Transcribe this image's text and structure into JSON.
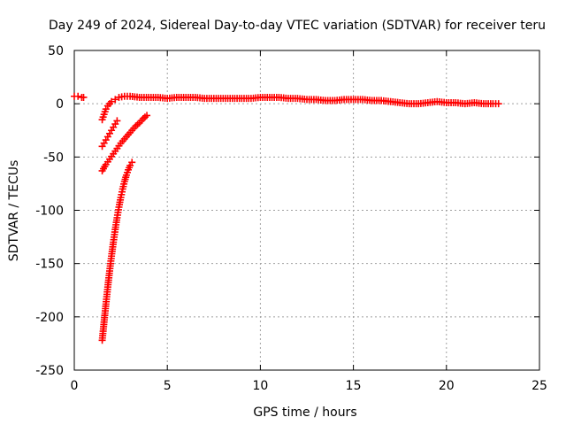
{
  "chart_data": {
    "type": "scatter",
    "title": "Day 249 of 2024, Sidereal Day-to-day VTEC variation (SDTVAR) for receiver teru",
    "xlabel": "GPS time / hours",
    "ylabel": "SDTVAR / TECUs",
    "xlim": [
      0,
      25
    ],
    "ylim": [
      -250,
      50
    ],
    "x_ticks": [
      0,
      5,
      10,
      15,
      20,
      25
    ],
    "y_ticks": [
      50,
      0,
      -50,
      -100,
      -150,
      -200,
      -250
    ],
    "grid": true,
    "marker": "+",
    "color": "#ff0000",
    "series": [
      {
        "x": [
          0.0,
          0.2,
          0.4,
          0.5
        ],
        "y": [
          7,
          7,
          6,
          6
        ]
      },
      {
        "x": [
          1.5,
          1.6,
          1.7,
          1.8,
          1.9,
          2.0,
          2.2,
          2.4,
          2.7,
          3.0,
          3.5,
          4.0,
          4.5,
          5.0,
          5.5,
          6.0,
          6.5,
          7.0,
          7.5,
          8.0,
          8.5,
          9.0,
          9.5,
          10.0,
          10.5,
          11.0,
          11.5,
          12.0,
          12.5,
          13.0,
          13.5,
          14.0,
          14.5,
          15.0,
          15.5,
          16.0,
          16.5,
          17.0,
          17.5,
          18.0,
          18.5,
          19.0,
          19.5,
          20.0,
          20.5,
          21.0,
          21.5,
          22.0,
          22.5,
          22.8
        ],
        "y": [
          -15,
          -10,
          -5,
          -2,
          0,
          2,
          4,
          6,
          7,
          7,
          6,
          6,
          6,
          5,
          6,
          6,
          6,
          5,
          5,
          5,
          5,
          5,
          5,
          6,
          6,
          6,
          5,
          5,
          4,
          4,
          3,
          3,
          4,
          4,
          4,
          3,
          3,
          2,
          1,
          0,
          0,
          1,
          2,
          1,
          1,
          0,
          1,
          0,
          0,
          0
        ]
      },
      {
        "x": [
          1.5,
          1.6,
          1.7,
          1.8,
          1.9,
          2.0,
          2.1,
          2.2,
          2.3
        ],
        "y": [
          -40,
          -37,
          -34,
          -31,
          -28,
          -25,
          -22,
          -19,
          -16
        ]
      },
      {
        "x": [
          1.5,
          1.7,
          1.9,
          2.1,
          2.3,
          2.5,
          2.7,
          2.9,
          3.1,
          3.3,
          3.5,
          3.7,
          3.9
        ],
        "y": [
          -63,
          -57,
          -52,
          -47,
          -42,
          -37,
          -33,
          -29,
          -25,
          -21,
          -18,
          -14,
          -11
        ]
      },
      {
        "x": [
          1.5,
          1.6,
          1.7,
          1.8,
          1.9,
          2.0,
          2.1,
          2.2,
          2.3,
          2.4,
          2.5,
          2.6,
          2.7,
          2.8,
          2.9,
          3.0,
          3.1
        ],
        "y": [
          -222,
          -205,
          -188,
          -172,
          -157,
          -143,
          -130,
          -118,
          -107,
          -97,
          -88,
          -80,
          -73,
          -67,
          -62,
          -58,
          -55
        ]
      }
    ]
  }
}
